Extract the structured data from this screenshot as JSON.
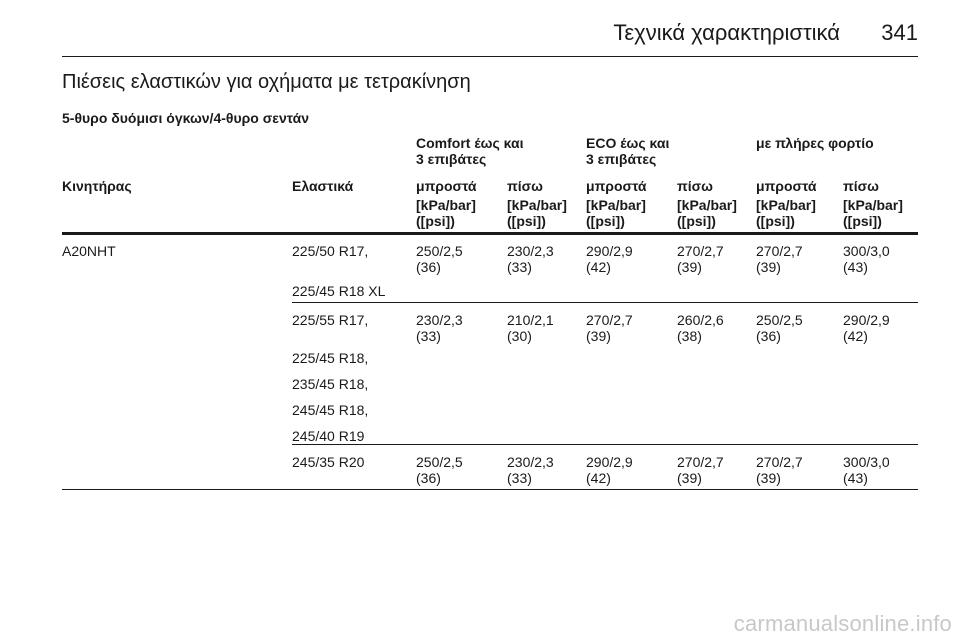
{
  "header": {
    "title": "Τεχνικά χαρακτηριστικά",
    "page_number": "341"
  },
  "section_title": "Πιέσεις ελαστικών για οχήματα με τετρακίνηση",
  "sub_title": "5-θυρο δυόμισι όγκων/4-θυρο σεντάν",
  "table": {
    "group_headers": {
      "comfort": [
        "Comfort έως και",
        "3 επιβάτες"
      ],
      "eco": [
        "ECO έως και",
        "3 επιβάτες"
      ],
      "full": [
        "με πλήρες φορτίο"
      ]
    },
    "col_engine": "Κινητήρας",
    "col_tyres": "Ελαστικά",
    "col_front": "μπροστά",
    "col_rear": "πίσω",
    "unit": [
      "[kPa/bar]",
      "([psi])"
    ],
    "rows": [
      {
        "engine": "A20NHT",
        "tyres": [
          "225/50 R17,",
          "225/45 R18 XL"
        ],
        "values": [
          [
            "250/2,5",
            "(36)"
          ],
          [
            "230/2,3",
            "(33)"
          ],
          [
            "290/2,9",
            "(42)"
          ],
          [
            "270/2,7",
            "(39)"
          ],
          [
            "270/2,7",
            "(39)"
          ],
          [
            "300/3,0",
            "(43)"
          ]
        ]
      },
      {
        "engine": "",
        "tyres": [
          "225/55 R17,",
          "225/45 R18,",
          "235/45 R18,",
          "245/45 R18,",
          "245/40 R19"
        ],
        "values": [
          [
            "230/2,3",
            "(33)"
          ],
          [
            "210/2,1",
            "(30)"
          ],
          [
            "270/2,7",
            "(39)"
          ],
          [
            "260/2,6",
            "(38)"
          ],
          [
            "250/2,5",
            "(36)"
          ],
          [
            "290/2,9",
            "(42)"
          ]
        ]
      },
      {
        "engine": "",
        "tyres": [
          "245/35 R20"
        ],
        "values": [
          [
            "250/2,5",
            "(36)"
          ],
          [
            "230/2,3",
            "(33)"
          ],
          [
            "290/2,9",
            "(42)"
          ],
          [
            "270/2,7",
            "(39)"
          ],
          [
            "270/2,7",
            "(39)"
          ],
          [
            "300/3,0",
            "(43)"
          ]
        ]
      }
    ]
  },
  "watermark": "carmanualsonline.info"
}
